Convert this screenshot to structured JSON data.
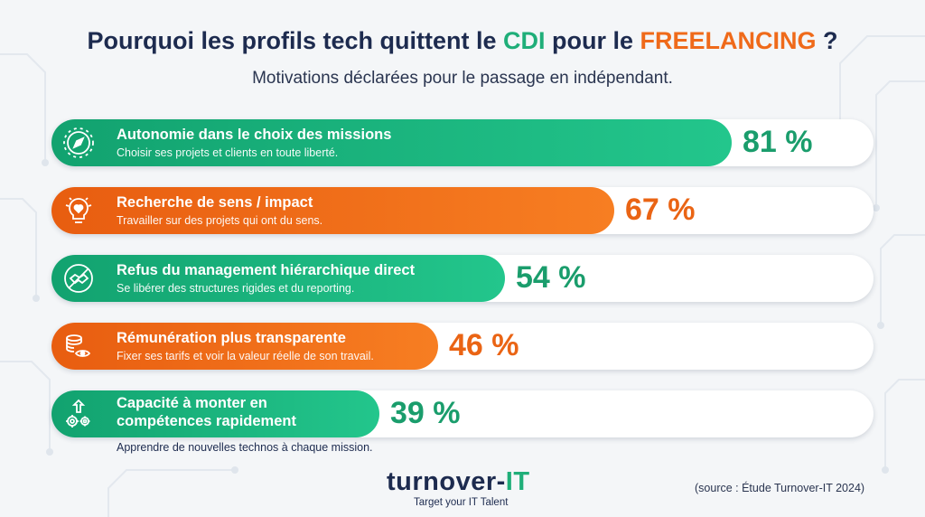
{
  "header": {
    "title_part1": "Pourquoi les profils tech quittent le ",
    "title_cdi": "CDI",
    "title_part2": " pour le ",
    "title_freelancing": "FREELANCING",
    "title_part3": " ?",
    "subtitle": "Motivations déclarées pour le passage en indépendant."
  },
  "colors": {
    "green": "#1fae79",
    "orange": "#ef6a1a",
    "navy": "#1d2b4f"
  },
  "chart_data": {
    "type": "bar",
    "title": "Pourquoi les profils tech quittent le CDI pour le FREELANCING ?",
    "subtitle": "Motivations déclarées pour le passage en indépendant.",
    "unit": "%",
    "ylim": [
      0,
      100
    ],
    "categories": [
      "Autonomie dans le choix des missions",
      "Recherche de sens / impact",
      "Refus du management hiérarchique direct",
      "Rémunération plus transparente",
      "Capacité à monter en compétences rapidement"
    ],
    "values": [
      81,
      67,
      54,
      46,
      39
    ],
    "items": [
      {
        "label": "Autonomie dans le choix des missions",
        "description": "Choisir ses projets et clients en toute liberté.",
        "value": 81,
        "value_text": "81 %",
        "color": "green",
        "icon": "compass-icon"
      },
      {
        "label": "Recherche de sens / impact",
        "description": "Travailler sur des projets qui ont du sens.",
        "value": 67,
        "value_text": "67 %",
        "color": "orange",
        "icon": "lightbulb-heart-icon"
      },
      {
        "label": "Refus du management hiérarchique direct",
        "description": "Se libérer des structures rigides et du reporting.",
        "value": 54,
        "value_text": "54 %",
        "color": "green",
        "icon": "no-handshake-icon"
      },
      {
        "label": "Rémunération plus transparente",
        "description": "Fixer ses tarifs et voir la valeur réelle de son travail.",
        "value": 46,
        "value_text": "46 %",
        "color": "orange",
        "icon": "coins-eye-icon"
      },
      {
        "label": "Capacité à monter en compétences rapidement",
        "description": "Apprendre de nouvelles technos à chaque mission.",
        "value": 39,
        "value_text": "39 %",
        "color": "green",
        "icon": "gears-growth-icon"
      }
    ]
  },
  "footer": {
    "brand_main": "turnover-",
    "brand_accent": "IT",
    "tagline": "Target your IT Talent",
    "source": "(source : Étude Turnover-IT 2024)"
  }
}
